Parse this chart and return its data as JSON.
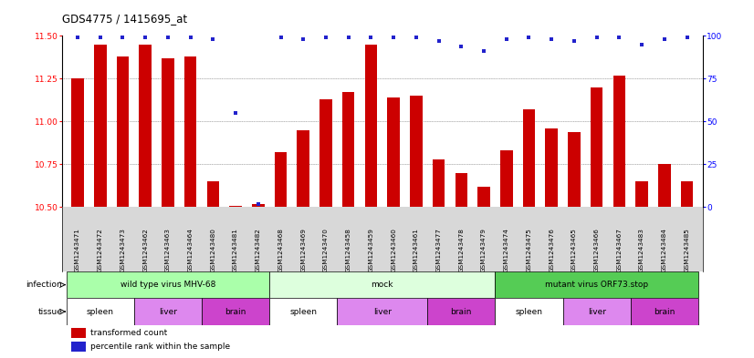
{
  "title": "GDS4775 / 1415695_at",
  "samples": [
    "GSM1243471",
    "GSM1243472",
    "GSM1243473",
    "GSM1243462",
    "GSM1243463",
    "GSM1243464",
    "GSM1243480",
    "GSM1243481",
    "GSM1243482",
    "GSM1243468",
    "GSM1243469",
    "GSM1243470",
    "GSM1243458",
    "GSM1243459",
    "GSM1243460",
    "GSM1243461",
    "GSM1243477",
    "GSM1243478",
    "GSM1243479",
    "GSM1243474",
    "GSM1243475",
    "GSM1243476",
    "GSM1243465",
    "GSM1243466",
    "GSM1243467",
    "GSM1243483",
    "GSM1243484",
    "GSM1243485"
  ],
  "bar_values": [
    11.25,
    11.45,
    11.38,
    11.45,
    11.37,
    11.38,
    10.65,
    10.51,
    10.52,
    10.82,
    10.95,
    11.13,
    11.17,
    11.45,
    11.14,
    11.15,
    10.78,
    10.7,
    10.62,
    10.83,
    11.07,
    10.96,
    10.94,
    11.2,
    11.27,
    10.65,
    10.75,
    10.65
  ],
  "percentile_values": [
    99,
    99,
    99,
    99,
    99,
    99,
    98,
    55,
    2,
    99,
    98,
    99,
    99,
    99,
    99,
    99,
    97,
    94,
    91,
    98,
    99,
    98,
    97,
    99,
    99,
    95,
    98,
    99
  ],
  "bar_color": "#cc0000",
  "percentile_color": "#2222cc",
  "ylim_left": [
    10.5,
    11.5
  ],
  "ylim_right": [
    0,
    100
  ],
  "yticks_left": [
    10.5,
    10.75,
    11.0,
    11.25,
    11.5
  ],
  "yticks_right": [
    0,
    25,
    50,
    75,
    100
  ],
  "infection_groups": [
    {
      "label": "wild type virus MHV-68",
      "start": 0,
      "end": 9,
      "color": "#aaffaa"
    },
    {
      "label": "mock",
      "start": 9,
      "end": 19,
      "color": "#ddffdd"
    },
    {
      "label": "mutant virus ORF73.stop",
      "start": 19,
      "end": 28,
      "color": "#55cc55"
    }
  ],
  "tissue_groups": [
    {
      "label": "spleen",
      "start": 0,
      "end": 3,
      "color": "#ffffff"
    },
    {
      "label": "liver",
      "start": 3,
      "end": 6,
      "color": "#dd88ee"
    },
    {
      "label": "brain",
      "start": 6,
      "end": 9,
      "color": "#cc44cc"
    },
    {
      "label": "spleen",
      "start": 9,
      "end": 12,
      "color": "#ffffff"
    },
    {
      "label": "liver",
      "start": 12,
      "end": 16,
      "color": "#dd88ee"
    },
    {
      "label": "brain",
      "start": 16,
      "end": 19,
      "color": "#cc44cc"
    },
    {
      "label": "spleen",
      "start": 19,
      "end": 22,
      "color": "#ffffff"
    },
    {
      "label": "liver",
      "start": 22,
      "end": 25,
      "color": "#dd88ee"
    },
    {
      "label": "brain",
      "start": 25,
      "end": 28,
      "color": "#cc44cc"
    }
  ],
  "infection_row_label": "infection",
  "tissue_row_label": "tissue",
  "legend_bar": "transformed count",
  "legend_dot": "percentile rank within the sample",
  "background_color": "#ffffff",
  "grid_color": "#555555",
  "tick_label_bg": "#d8d8d8"
}
